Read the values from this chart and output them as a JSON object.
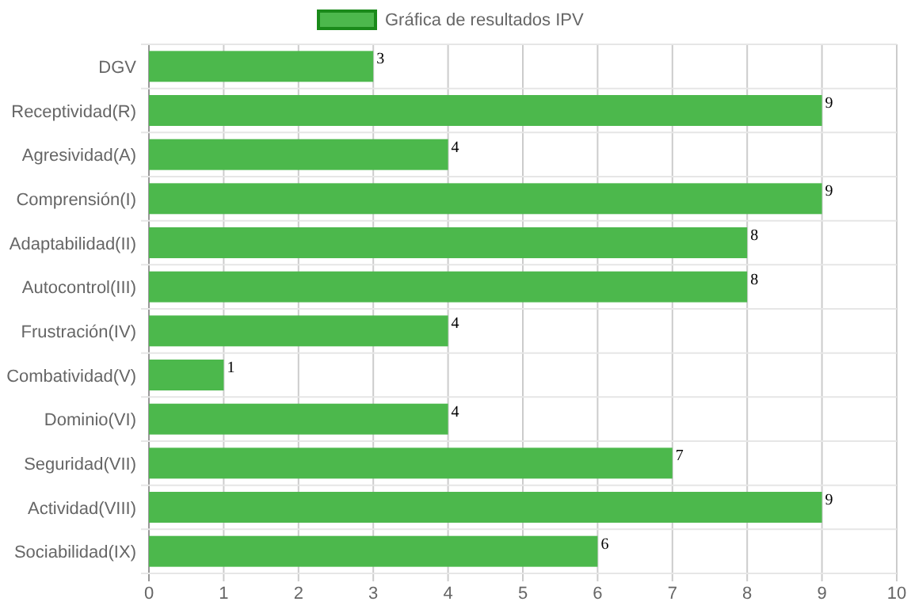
{
  "chart_data": {
    "type": "bar",
    "orientation": "horizontal",
    "categories": [
      "DGV",
      "Receptividad(R)",
      "Agresividad(A)",
      "Comprensión(I)",
      "Adaptabilidad(II)",
      "Autocontrol(III)",
      "Frustración(IV)",
      "Combatividad(V)",
      "Dominio(VI)",
      "Seguridad(VII)",
      "Actividad(VIII)",
      "Sociabilidad(IX)"
    ],
    "series": [
      {
        "name": "Gráfica de resultados IPV",
        "color": "#4cb84c",
        "values": [
          3,
          9,
          4,
          9,
          8,
          8,
          4,
          1,
          4,
          7,
          9,
          6
        ]
      }
    ],
    "xlim": [
      0,
      10
    ],
    "xticks": [
      0,
      1,
      2,
      3,
      4,
      5,
      6,
      7,
      8,
      9,
      10
    ],
    "grid": true,
    "legend": "top",
    "data_labels": true
  }
}
